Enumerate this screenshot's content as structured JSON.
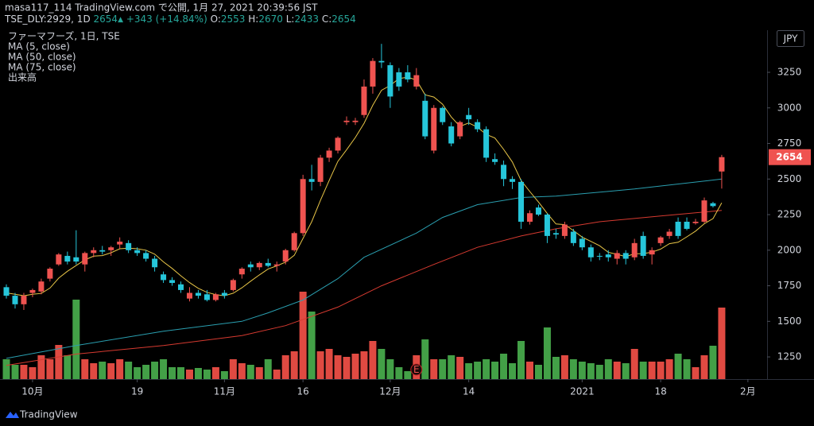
{
  "header": {
    "line1": "masa117_114 TradingView.com で公開, 1月 27, 2021 20:39:56 JST",
    "symbol": "TSE_DLY:2929, 1D",
    "last": "2654",
    "arrow": "▲",
    "change": "+343 (+14.84%)",
    "ohlc": [
      {
        "label": "O:",
        "value": "2553"
      },
      {
        "label": "H:",
        "value": "2670"
      },
      {
        "label": "L:",
        "value": "2433"
      },
      {
        "label": "C:",
        "value": "2654"
      }
    ]
  },
  "footer": {
    "brand": "TradingView"
  },
  "chart_data": {
    "type": "candlestick",
    "title": "ファーマフーズ, 1日, TSE",
    "currency": "JPY",
    "volume_label": "出来高",
    "up_color": "#ef5350",
    "down_color": "#26c6da",
    "volume_up_color": "#e04a42",
    "volume_down_color": "#43a047",
    "ylim": [
      1094,
      3546
    ],
    "yticks": [
      1250,
      1500,
      1750,
      2000,
      2250,
      2500,
      2750,
      3000,
      3250
    ],
    "xlim": [
      -0.73,
      87.2
    ],
    "xticks": [
      {
        "value": 3,
        "label": "10月"
      },
      {
        "value": 15,
        "label": "19"
      },
      {
        "value": 25,
        "label": "11月"
      },
      {
        "value": 34,
        "label": "16"
      },
      {
        "value": 44,
        "label": "12月"
      },
      {
        "value": 53,
        "label": "14"
      },
      {
        "value": 66,
        "label": "2021"
      },
      {
        "value": 75,
        "label": "18"
      },
      {
        "value": 85,
        "label": "2月"
      }
    ],
    "open": [
      1740,
      1680,
      1620,
      1700,
      1710,
      1800,
      1900,
      1960,
      1950,
      1900,
      1980,
      2000,
      2000,
      2040,
      2050,
      2000,
      1980,
      1940,
      1830,
      1790,
      1760,
      1660,
      1700,
      1690,
      1650,
      1700,
      1720,
      1830,
      1900,
      1880,
      1910,
      1890,
      1920,
      2000,
      2120,
      2500,
      2480,
      2650,
      2700,
      2900,
      2900,
      2950,
      3150,
      3330,
      3300,
      3250,
      3250,
      3150,
      3050,
      2700,
      3000,
      2870,
      2800,
      2950,
      2900,
      2850,
      2640,
      2600,
      2500,
      2480,
      2200,
      2300,
      2250,
      2120,
      2100,
      2130,
      2080,
      2020,
      1960,
      1970,
      1940,
      1980,
      1950,
      2100,
      1970,
      2050,
      2100,
      2200,
      2200,
      2190,
      2200,
      2330,
      2553
    ],
    "high": [
      1760,
      1700,
      1700,
      1730,
      1800,
      1880,
      1980,
      1990,
      2140,
      1990,
      2020,
      2030,
      2030,
      2090,
      2070,
      2020,
      2000,
      1960,
      1850,
      1810,
      1780,
      1740,
      1720,
      1720,
      1700,
      1720,
      1800,
      1880,
      1920,
      1920,
      1940,
      1920,
      2010,
      2130,
      2530,
      2600,
      2670,
      2720,
      2800,
      2940,
      2930,
      3200,
      3350,
      3450,
      3320,
      3280,
      3300,
      3280,
      3100,
      3020,
      3010,
      2900,
      2910,
      3000,
      2920,
      2870,
      2680,
      2630,
      2520,
      2500,
      2280,
      2320,
      2260,
      2150,
      2200,
      2150,
      2100,
      2040,
      1980,
      2000,
      2000,
      2000,
      2080,
      2130,
      2020,
      2100,
      2150,
      2230,
      2230,
      2220,
      2370,
      2340,
      2670
    ],
    "low": [
      1660,
      1590,
      1580,
      1670,
      1690,
      1780,
      1890,
      1900,
      1900,
      1850,
      1950,
      1970,
      1960,
      2010,
      1980,
      1960,
      1920,
      1850,
      1770,
      1750,
      1700,
      1640,
      1660,
      1640,
      1640,
      1660,
      1710,
      1800,
      1850,
      1860,
      1880,
      1850,
      1900,
      1990,
      2100,
      2420,
      2450,
      2620,
      2680,
      2880,
      2880,
      2930,
      3100,
      3280,
      3000,
      3120,
      3180,
      3130,
      2780,
      2680,
      2880,
      2730,
      2780,
      2880,
      2830,
      2620,
      2600,
      2450,
      2430,
      2150,
      2180,
      2240,
      2050,
      2080,
      2080,
      2030,
      2000,
      1920,
      1930,
      1920,
      1900,
      1900,
      1930,
      1940,
      1900,
      2030,
      2080,
      2080,
      2140,
      2180,
      2190,
      2300,
      2433
    ],
    "close": [
      1680,
      1620,
      1680,
      1720,
      1780,
      1870,
      1970,
      1920,
      1920,
      1980,
      2000,
      1990,
      2020,
      2060,
      2000,
      1980,
      1940,
      1880,
      1790,
      1770,
      1720,
      1700,
      1680,
      1650,
      1690,
      1680,
      1790,
      1870,
      1880,
      1910,
      1890,
      1900,
      2000,
      2120,
      2500,
      2480,
      2650,
      2700,
      2790,
      2910,
      2910,
      3150,
      3330,
      3320,
      3080,
      3150,
      3200,
      3230,
      2800,
      3000,
      2900,
      2750,
      2900,
      2920,
      2850,
      2650,
      2620,
      2500,
      2480,
      2200,
      2260,
      2250,
      2100,
      2110,
      2180,
      2050,
      2020,
      1950,
      1955,
      1950,
      1980,
      1940,
      2050,
      1960,
      2000,
      2090,
      2130,
      2100,
      2150,
      2200,
      2350,
      2310,
      2654
    ],
    "volume": [
      25,
      18,
      18,
      15,
      30,
      25,
      43,
      30,
      100,
      25,
      20,
      22,
      20,
      25,
      22,
      15,
      18,
      22,
      25,
      15,
      15,
      12,
      14,
      12,
      15,
      10,
      25,
      20,
      18,
      15,
      25,
      12,
      30,
      35,
      110,
      85,
      35,
      38,
      30,
      28,
      32,
      35,
      48,
      38,
      25,
      15,
      10,
      30,
      50,
      25,
      25,
      30,
      28,
      20,
      22,
      25,
      22,
      32,
      20,
      48,
      22,
      18,
      65,
      28,
      30,
      25,
      22,
      20,
      18,
      25,
      22,
      20,
      38,
      22,
      22,
      22,
      25,
      32,
      25,
      15,
      30,
      42,
      90
    ],
    "ma": [
      {
        "name": "MA (5, close)",
        "color": "#e8c547",
        "values": [
          1700,
          1690,
          1680,
          1690,
          1696,
          1734,
          1804,
          1852,
          1892,
          1932,
          1958,
          1962,
          1982,
          2010,
          2014,
          2010,
          2000,
          1972,
          1918,
          1872,
          1820,
          1772,
          1732,
          1704,
          1688,
          1680,
          1698,
          1736,
          1782,
          1826,
          1868,
          1890,
          1916,
          1964,
          2082,
          2200,
          2350,
          2490,
          2624,
          2706,
          2792,
          2892,
          3018,
          3124,
          3158,
          3206,
          3216,
          3196,
          3092,
          3076,
          3026,
          2936,
          2870,
          2894,
          2864,
          2814,
          2788,
          2708,
          2620,
          2490,
          2412,
          2338,
          2258,
          2184,
          2180,
          2138,
          2092,
          2062,
          2031,
          1985,
          1971,
          1955,
          1975,
          1976,
          1986,
          2008,
          2046,
          2056,
          2094,
          2134,
          2186,
          2222,
          2333
        ]
      },
      {
        "name": "MA (50, close)",
        "color": "#2a9fb0",
        "x": [
          0,
          8,
          18,
          27,
          30,
          34,
          38,
          41,
          47,
          50,
          54,
          59,
          63,
          72,
          82
        ],
        "values": [
          1240,
          1330,
          1430,
          1500,
          1560,
          1650,
          1800,
          1950,
          2120,
          2230,
          2320,
          2370,
          2380,
          2430,
          2500
        ]
      },
      {
        "name": "MA (75, close)",
        "color": "#d63a30",
        "x": [
          0,
          8,
          18,
          27,
          32,
          38,
          43,
          49,
          54,
          59,
          63,
          68,
          75,
          82
        ],
        "values": [
          1190,
          1270,
          1330,
          1400,
          1470,
          1600,
          1750,
          1900,
          2020,
          2100,
          2150,
          2200,
          2240,
          2280
        ]
      }
    ],
    "markers": [
      {
        "label": "E",
        "index": 47
      }
    ]
  }
}
